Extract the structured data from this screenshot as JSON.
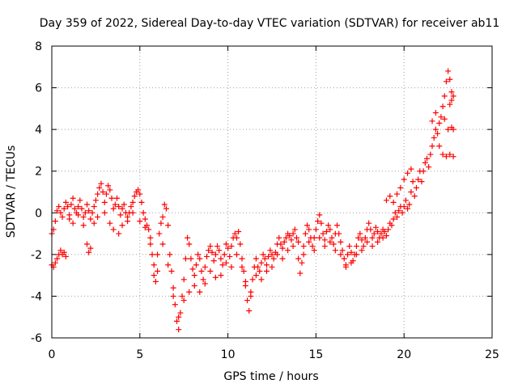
{
  "chart_data": {
    "type": "scatter",
    "title": "Day 359 of 2022, Sidereal Day-to-day VTEC variation (SDTVAR) for receiver ab11",
    "xlabel": "GPS time / hours",
    "ylabel": "SDTVAR / TECUs",
    "xlim": [
      0,
      25
    ],
    "ylim": [
      -6,
      8
    ],
    "xticks": [
      0,
      5,
      10,
      15,
      20,
      25
    ],
    "yticks": [
      -6,
      -4,
      -2,
      0,
      2,
      4,
      6,
      8
    ],
    "grid": true,
    "marker": "+",
    "series": [
      {
        "name": "main",
        "color": "#ff0000",
        "points": [
          [
            0.0,
            -1.0
          ],
          [
            0.1,
            -0.8
          ],
          [
            0.2,
            -0.4
          ],
          [
            0.3,
            0.1
          ],
          [
            0.4,
            0.3
          ],
          [
            0.5,
            0.0
          ],
          [
            0.6,
            -0.2
          ],
          [
            0.7,
            0.2
          ],
          [
            0.8,
            0.5
          ],
          [
            0.9,
            0.3
          ],
          [
            1.0,
            -0.1
          ],
          [
            1.1,
            0.4
          ],
          [
            1.2,
            0.7
          ],
          [
            1.3,
            0.2
          ],
          [
            1.4,
            0.0
          ],
          [
            1.5,
            0.3
          ],
          [
            1.6,
            0.6
          ],
          [
            1.7,
            0.2
          ],
          [
            1.8,
            -0.2
          ],
          [
            1.9,
            0.0
          ],
          [
            2.0,
            0.4
          ],
          [
            2.1,
            0.1
          ],
          [
            2.2,
            -0.3
          ],
          [
            2.3,
            0.0
          ],
          [
            2.4,
            0.3
          ],
          [
            2.5,
            0.6
          ],
          [
            2.6,
            0.9
          ],
          [
            2.7,
            1.2
          ],
          [
            2.8,
            1.4
          ],
          [
            2.9,
            1.0
          ],
          [
            3.0,
            0.5
          ],
          [
            3.1,
            0.9
          ],
          [
            3.2,
            1.3
          ],
          [
            3.3,
            1.1
          ],
          [
            3.4,
            0.7
          ],
          [
            3.5,
            0.2
          ],
          [
            3.6,
            0.4
          ],
          [
            3.7,
            0.7
          ],
          [
            3.8,
            0.3
          ],
          [
            3.9,
            -0.1
          ],
          [
            4.0,
            0.2
          ],
          [
            4.1,
            0.4
          ],
          [
            4.2,
            0.0
          ],
          [
            4.3,
            -0.4
          ],
          [
            4.4,
            0.0
          ],
          [
            4.5,
            0.3
          ],
          [
            4.6,
            0.5
          ],
          [
            4.7,
            0.8
          ],
          [
            4.8,
            1.0
          ],
          [
            4.9,
            1.1
          ],
          [
            5.0,
            0.9
          ],
          [
            5.1,
            0.5
          ],
          [
            5.2,
            0.0
          ],
          [
            5.3,
            -0.3
          ],
          [
            5.4,
            -0.6
          ],
          [
            5.5,
            -0.8
          ],
          [
            5.6,
            -1.2
          ],
          [
            5.7,
            -2.0
          ],
          [
            5.8,
            -3.0
          ],
          [
            5.9,
            -3.3
          ],
          [
            6.0,
            -2.0
          ],
          [
            6.1,
            -1.0
          ],
          [
            6.2,
            -0.5
          ],
          [
            6.3,
            -0.2
          ],
          [
            6.4,
            0.4
          ],
          [
            6.5,
            0.2
          ],
          [
            6.6,
            -0.6
          ],
          [
            6.7,
            -2.0
          ],
          [
            6.8,
            -2.8
          ],
          [
            6.9,
            -3.6
          ],
          [
            7.0,
            -4.4
          ],
          [
            7.1,
            -5.2
          ],
          [
            7.2,
            -5.6
          ],
          [
            7.3,
            -4.8
          ],
          [
            7.4,
            -4.0
          ],
          [
            7.5,
            -3.2
          ],
          [
            7.6,
            -2.2
          ],
          [
            7.7,
            -1.2
          ],
          [
            7.8,
            -1.5
          ],
          [
            7.9,
            -2.2
          ],
          [
            8.0,
            -2.7
          ],
          [
            8.1,
            -3.0
          ],
          [
            8.2,
            -2.5
          ],
          [
            8.3,
            -2.0
          ],
          [
            8.4,
            -2.2
          ],
          [
            8.5,
            -2.8
          ],
          [
            8.6,
            -3.2
          ],
          [
            8.7,
            -2.6
          ],
          [
            8.8,
            -2.1
          ],
          [
            8.9,
            -1.8
          ],
          [
            9.0,
            -1.6
          ],
          [
            9.1,
            -1.9
          ],
          [
            9.2,
            -2.3
          ],
          [
            9.3,
            -2.0
          ],
          [
            9.4,
            -1.6
          ],
          [
            9.5,
            -1.8
          ],
          [
            9.6,
            -2.2
          ],
          [
            9.7,
            -2.5
          ],
          [
            9.8,
            -2.0
          ],
          [
            9.9,
            -1.5
          ],
          [
            10.0,
            -1.7
          ],
          [
            10.1,
            -2.1
          ],
          [
            10.2,
            -1.6
          ],
          [
            10.3,
            -1.2
          ],
          [
            10.4,
            -1.0
          ],
          [
            10.5,
            -1.2
          ],
          [
            10.6,
            -0.9
          ],
          [
            10.7,
            -1.5
          ],
          [
            10.8,
            -2.2
          ],
          [
            10.9,
            -2.8
          ],
          [
            11.0,
            -3.5
          ],
          [
            11.1,
            -4.2
          ],
          [
            11.2,
            -4.7
          ],
          [
            11.3,
            -4.0
          ],
          [
            11.4,
            -3.2
          ],
          [
            11.5,
            -2.6
          ],
          [
            11.6,
            -2.2
          ],
          [
            11.7,
            -2.6
          ],
          [
            11.8,
            -2.8
          ],
          [
            11.9,
            -2.4
          ],
          [
            12.0,
            -2.0
          ],
          [
            12.1,
            -2.2
          ],
          [
            12.2,
            -2.5
          ],
          [
            12.3,
            -2.1
          ],
          [
            12.4,
            -1.8
          ],
          [
            12.5,
            -2.0
          ],
          [
            12.6,
            -2.2
          ],
          [
            12.7,
            -1.9
          ],
          [
            12.8,
            -1.5
          ],
          [
            12.9,
            -1.2
          ],
          [
            13.0,
            -1.5
          ],
          [
            13.1,
            -1.7
          ],
          [
            13.2,
            -1.4
          ],
          [
            13.3,
            -1.2
          ],
          [
            13.4,
            -1.0
          ],
          [
            13.5,
            -1.1
          ],
          [
            13.6,
            -1.3
          ],
          [
            13.7,
            -1.0
          ],
          [
            13.8,
            -0.8
          ],
          [
            13.9,
            -1.2
          ],
          [
            14.0,
            -2.2
          ],
          [
            14.1,
            -2.9
          ],
          [
            14.2,
            -2.4
          ],
          [
            14.3,
            -1.6
          ],
          [
            14.4,
            -1.0
          ],
          [
            14.5,
            -0.6
          ],
          [
            14.6,
            -0.8
          ],
          [
            14.7,
            -1.2
          ],
          [
            14.8,
            -1.6
          ],
          [
            14.9,
            -1.2
          ],
          [
            15.0,
            -0.8
          ],
          [
            15.1,
            -0.4
          ],
          [
            15.2,
            -0.1
          ],
          [
            15.3,
            -0.5
          ],
          [
            15.4,
            -1.0
          ],
          [
            15.5,
            -1.3
          ],
          [
            15.6,
            -0.9
          ],
          [
            15.7,
            -0.6
          ],
          [
            15.8,
            -0.8
          ],
          [
            15.9,
            -1.2
          ],
          [
            16.0,
            -1.5
          ],
          [
            16.1,
            -1.0
          ],
          [
            16.2,
            -0.6
          ],
          [
            16.3,
            -1.0
          ],
          [
            16.4,
            -1.4
          ],
          [
            16.5,
            -1.8
          ],
          [
            16.6,
            -2.2
          ],
          [
            16.7,
            -2.5
          ],
          [
            16.8,
            -2.0
          ],
          [
            16.9,
            -1.6
          ],
          [
            17.0,
            -1.9
          ],
          [
            17.1,
            -2.3
          ],
          [
            17.2,
            -2.0
          ],
          [
            17.3,
            -1.6
          ],
          [
            17.4,
            -1.2
          ],
          [
            17.5,
            -1.0
          ],
          [
            17.6,
            -1.3
          ],
          [
            17.7,
            -1.6
          ],
          [
            17.8,
            -1.2
          ],
          [
            17.9,
            -0.8
          ],
          [
            18.0,
            -0.5
          ],
          [
            18.1,
            -0.8
          ],
          [
            18.2,
            -1.2
          ],
          [
            18.3,
            -1.0
          ],
          [
            18.4,
            -0.7
          ],
          [
            18.5,
            -0.9
          ],
          [
            18.6,
            -1.2
          ],
          [
            18.7,
            -1.0
          ],
          [
            18.8,
            -0.8
          ],
          [
            18.9,
            -0.9
          ],
          [
            19.0,
            -1.1
          ],
          [
            19.1,
            -0.8
          ],
          [
            19.2,
            -0.5
          ],
          [
            19.3,
            -0.6
          ],
          [
            19.4,
            -0.3
          ],
          [
            19.5,
            0.0
          ],
          [
            19.6,
            -0.2
          ],
          [
            19.7,
            0.1
          ],
          [
            19.8,
            0.3
          ],
          [
            19.9,
            0.0
          ],
          [
            20.0,
            0.3
          ],
          [
            20.1,
            0.6
          ],
          [
            20.2,
            0.2
          ],
          [
            20.3,
            0.4
          ],
          [
            20.4,
            1.0
          ],
          [
            20.5,
            1.5
          ],
          [
            20.6,
            0.8
          ],
          [
            20.7,
            1.2
          ],
          [
            20.8,
            1.6
          ],
          [
            20.9,
            2.0
          ],
          [
            21.0,
            1.5
          ],
          [
            21.1,
            2.0
          ],
          [
            21.2,
            2.4
          ],
          [
            21.3,
            2.6
          ],
          [
            21.4,
            2.2
          ],
          [
            21.5,
            2.8
          ],
          [
            21.6,
            3.2
          ],
          [
            21.7,
            3.6
          ],
          [
            21.8,
            4.0
          ],
          [
            21.9,
            3.8
          ],
          [
            22.0,
            4.3
          ],
          [
            22.1,
            4.6
          ],
          [
            22.2,
            5.1
          ],
          [
            22.3,
            5.6
          ],
          [
            22.4,
            6.3
          ],
          [
            22.5,
            6.8
          ],
          [
            22.6,
            6.4
          ],
          [
            22.7,
            5.8
          ],
          [
            22.8,
            5.6
          ]
        ]
      },
      {
        "name": "offset",
        "color": "#ff0000",
        "points": [
          [
            0.0,
            -2.5
          ],
          [
            0.1,
            -2.6
          ],
          [
            0.2,
            -2.4
          ],
          [
            0.3,
            -2.2
          ],
          [
            0.4,
            -2.0
          ],
          [
            0.5,
            -1.8
          ],
          [
            0.6,
            -2.0
          ],
          [
            0.7,
            -1.9
          ],
          [
            0.8,
            -2.1
          ],
          [
            1.0,
            -0.3
          ],
          [
            1.2,
            -0.5
          ],
          [
            1.5,
            -0.1
          ],
          [
            1.8,
            -0.6
          ],
          [
            2.0,
            -1.5
          ],
          [
            2.1,
            -1.9
          ],
          [
            2.2,
            -1.7
          ],
          [
            2.4,
            -0.5
          ],
          [
            2.6,
            -0.2
          ],
          [
            3.0,
            0.0
          ],
          [
            3.3,
            -0.5
          ],
          [
            3.5,
            -0.8
          ],
          [
            3.8,
            -1.0
          ],
          [
            4.0,
            -0.6
          ],
          [
            4.3,
            -0.2
          ],
          [
            4.6,
            0.0
          ],
          [
            5.0,
            -0.4
          ],
          [
            5.3,
            -0.7
          ],
          [
            5.6,
            -1.5
          ],
          [
            5.8,
            -2.5
          ],
          [
            6.0,
            -2.8
          ],
          [
            6.3,
            -1.5
          ],
          [
            6.6,
            -2.5
          ],
          [
            6.9,
            -4.0
          ],
          [
            7.2,
            -5.0
          ],
          [
            7.5,
            -4.2
          ],
          [
            7.8,
            -3.8
          ],
          [
            8.1,
            -3.5
          ],
          [
            8.4,
            -3.8
          ],
          [
            8.7,
            -3.4
          ],
          [
            9.0,
            -2.8
          ],
          [
            9.3,
            -3.1
          ],
          [
            9.6,
            -3.0
          ],
          [
            9.9,
            -2.4
          ],
          [
            10.2,
            -2.6
          ],
          [
            10.5,
            -2.0
          ],
          [
            10.8,
            -2.6
          ],
          [
            11.0,
            -3.3
          ],
          [
            11.3,
            -3.8
          ],
          [
            11.6,
            -3.0
          ],
          [
            11.9,
            -3.2
          ],
          [
            12.2,
            -2.8
          ],
          [
            12.5,
            -2.6
          ],
          [
            12.8,
            -2.0
          ],
          [
            13.1,
            -2.2
          ],
          [
            13.4,
            -1.8
          ],
          [
            13.7,
            -1.6
          ],
          [
            14.0,
            -1.4
          ],
          [
            14.3,
            -2.0
          ],
          [
            14.6,
            -1.4
          ],
          [
            14.9,
            -1.8
          ],
          [
            15.2,
            -1.2
          ],
          [
            15.5,
            -1.6
          ],
          [
            15.8,
            -1.4
          ],
          [
            16.1,
            -1.8
          ],
          [
            16.4,
            -2.0
          ],
          [
            16.7,
            -2.6
          ],
          [
            17.0,
            -2.4
          ],
          [
            17.3,
            -2.0
          ],
          [
            17.6,
            -1.8
          ],
          [
            17.9,
            -1.4
          ],
          [
            18.2,
            -1.6
          ],
          [
            18.5,
            -1.4
          ],
          [
            18.8,
            -1.2
          ],
          [
            19.0,
            0.6
          ],
          [
            19.2,
            0.8
          ],
          [
            19.4,
            0.5
          ],
          [
            19.6,
            0.9
          ],
          [
            19.8,
            1.2
          ],
          [
            20.0,
            1.6
          ],
          [
            20.2,
            1.9
          ],
          [
            20.4,
            2.1
          ],
          [
            21.6,
            4.4
          ],
          [
            21.8,
            4.8
          ],
          [
            22.0,
            3.2
          ],
          [
            22.2,
            2.8
          ],
          [
            22.4,
            2.7
          ],
          [
            22.6,
            2.8
          ],
          [
            22.8,
            2.7
          ],
          [
            22.3,
            4.5
          ],
          [
            22.5,
            4.0
          ],
          [
            22.7,
            4.1
          ],
          [
            22.8,
            4.0
          ],
          [
            22.6,
            5.2
          ],
          [
            22.7,
            5.4
          ]
        ]
      }
    ]
  }
}
